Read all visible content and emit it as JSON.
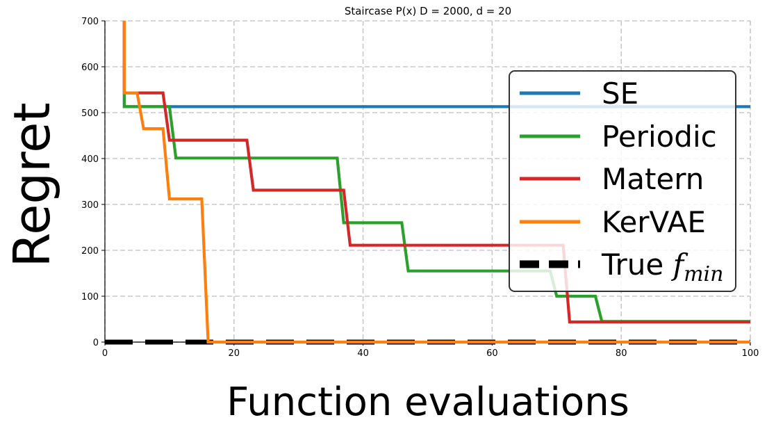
{
  "chart_data": {
    "type": "line",
    "title": "Staircase P(x) D = 2000, d = 20",
    "xlabel": "Function evaluations",
    "ylabel": "Regret",
    "xlim": [
      0,
      100
    ],
    "ylim": [
      0,
      700
    ],
    "xticks": [
      0,
      20,
      40,
      60,
      80,
      100
    ],
    "yticks": [
      0,
      100,
      200,
      300,
      400,
      500,
      600,
      700
    ],
    "grid": true,
    "legend_position": "center-right",
    "series": [
      {
        "name": "SE",
        "color": "#1f77b4",
        "dashed": false,
        "x": [
          3,
          3,
          100
        ],
        "y": [
          700,
          513,
          513
        ]
      },
      {
        "name": "Periodic",
        "color": "#2ca02c",
        "dashed": false,
        "x": [
          3,
          3,
          10,
          11,
          36,
          37,
          46,
          47,
          69,
          70,
          76,
          77,
          100
        ],
        "y": [
          700,
          513,
          513,
          401,
          401,
          260,
          260,
          155,
          155,
          100,
          100,
          45,
          45
        ]
      },
      {
        "name": "Matern",
        "color": "#d62728",
        "dashed": false,
        "x": [
          3,
          3,
          9,
          10,
          22,
          23,
          37,
          38,
          71,
          72,
          100
        ],
        "y": [
          700,
          543,
          543,
          440,
          440,
          331,
          331,
          211,
          211,
          44,
          44
        ]
      },
      {
        "name": "KerVAE",
        "color": "#ff7f0e",
        "dashed": false,
        "x": [
          3,
          3,
          5,
          6,
          9,
          10,
          15,
          16,
          100
        ],
        "y": [
          700,
          543,
          543,
          465,
          465,
          312,
          312,
          0,
          0
        ]
      },
      {
        "name": "True f_min",
        "legend_label_main": "True ",
        "legend_label_math": "f",
        "legend_label_sub": "min",
        "color": "#000000",
        "dashed": true,
        "x": [
          0,
          100
        ],
        "y": [
          0,
          0
        ]
      }
    ]
  }
}
